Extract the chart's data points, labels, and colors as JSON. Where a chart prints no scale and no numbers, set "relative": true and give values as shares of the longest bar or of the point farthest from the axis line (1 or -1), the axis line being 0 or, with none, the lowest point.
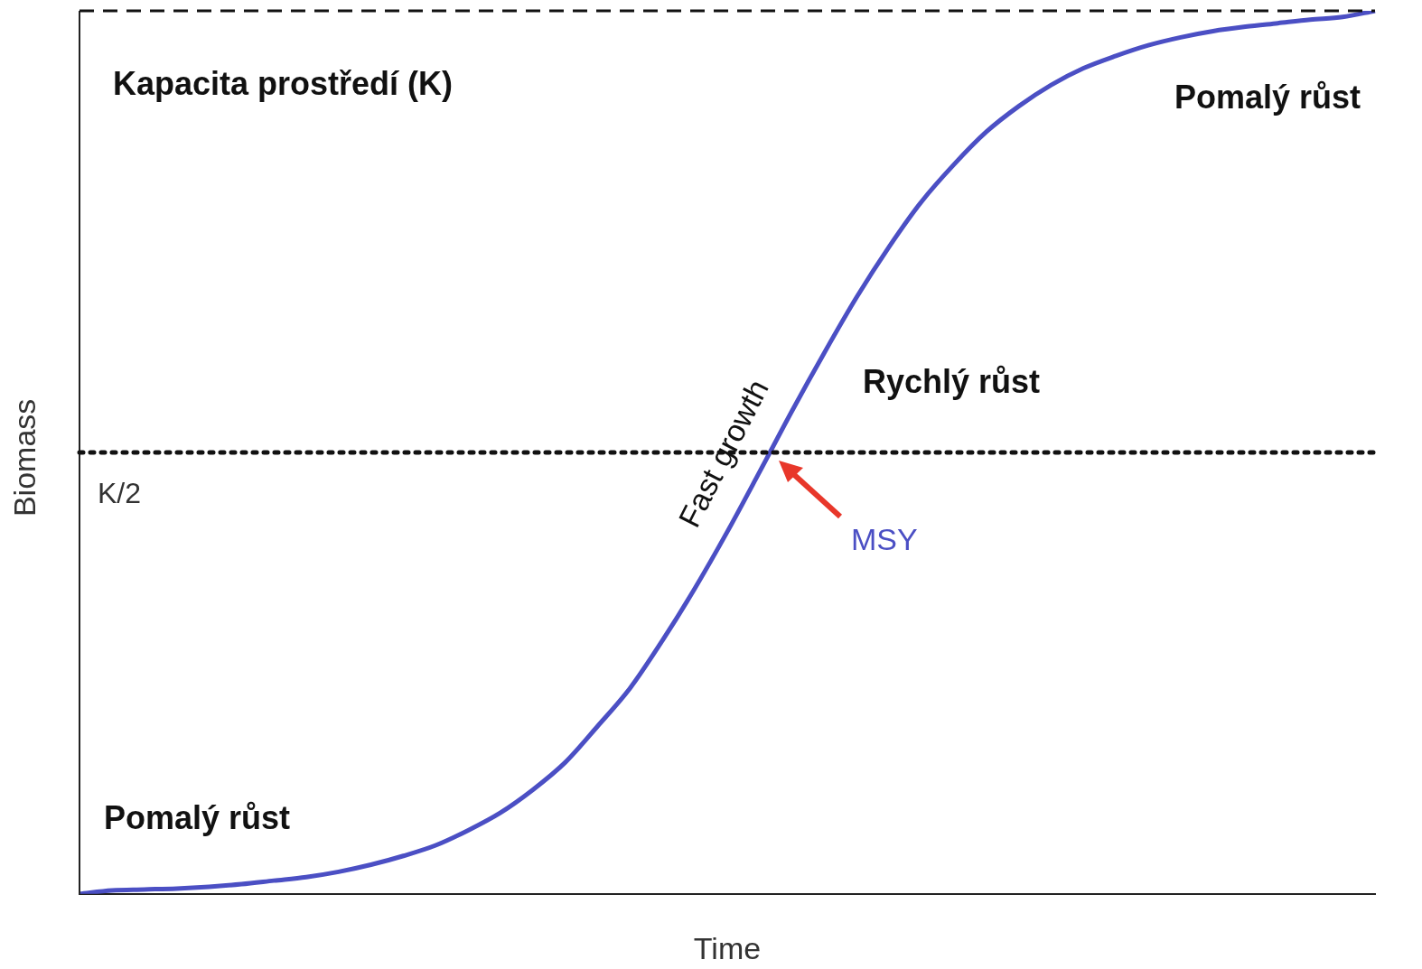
{
  "chart_data": {
    "type": "line",
    "relative": true,
    "xlabel": "Time",
    "ylabel": "Biomass",
    "categories": [
      null,
      null,
      null,
      null,
      null,
      null,
      null,
      null,
      null,
      null,
      null,
      null,
      null,
      null,
      null,
      null,
      null,
      null,
      null,
      null,
      null,
      null,
      null,
      null,
      null,
      null,
      null,
      null,
      null,
      null,
      null,
      null,
      null,
      null,
      null,
      null,
      null,
      null,
      null,
      null,
      null
    ],
    "series": [
      {
        "color": "#4b4fc4",
        "values": [
          0,
          0.004,
          0.005,
          0.006,
          0.008,
          0.011,
          0.015,
          0.019,
          0.025,
          0.033,
          0.043,
          0.055,
          0.072,
          0.092,
          0.118,
          0.149,
          0.19,
          0.233,
          0.287,
          0.346,
          0.41,
          0.478,
          0.547,
          0.613,
          0.676,
          0.733,
          0.784,
          0.826,
          0.863,
          0.892,
          0.916,
          0.935,
          0.949,
          0.961,
          0.97,
          0.977,
          0.982,
          0.986,
          0.99,
          0.993,
          1
        ]
      }
    ],
    "ref_lines": [
      {
        "axis": "y",
        "value": 1,
        "label": "Kapacita prostředí (K)",
        "line_style": "dashed",
        "color": "#111111"
      },
      {
        "axis": "y",
        "value": 0.5,
        "label": "K/2",
        "line_style": "dotted",
        "color": "#111111"
      }
    ],
    "annotations": [
      "Pomalý růst",
      "Rychlý růst",
      "Pomalý růst",
      "Fast growth",
      "MSY"
    ],
    "grid": false,
    "legend": false,
    "marker": "none",
    "line_style": "solid"
  }
}
